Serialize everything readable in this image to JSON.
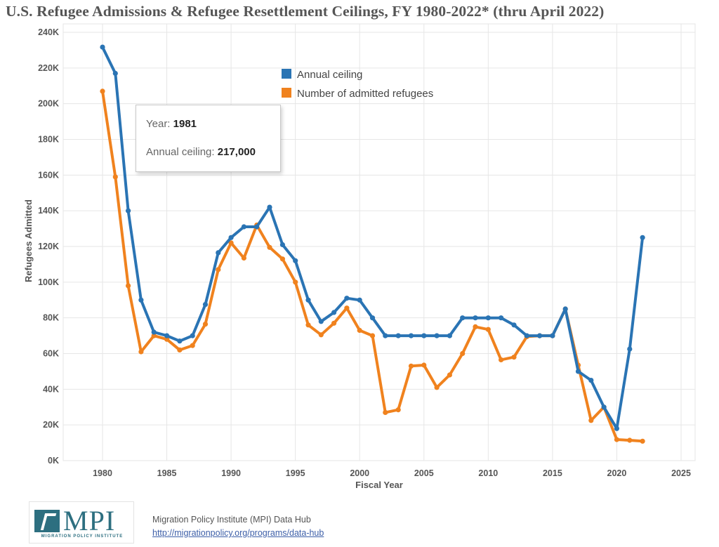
{
  "chart_data": {
    "type": "line",
    "title": "U.S. Refugee Admissions & Refugee Resettlement Ceilings, FY 1980-2022* (thru April 2022)",
    "xlabel": "Fiscal Year",
    "ylabel": "Refugees Admitted",
    "xlim": [
      1975,
      2025
    ],
    "ylim": [
      0,
      240000
    ],
    "x_ticks": [
      1980,
      1985,
      1990,
      1995,
      2000,
      2005,
      2010,
      2015,
      2020,
      2025
    ],
    "y_ticks": [
      {
        "value": 0,
        "label": "0K"
      },
      {
        "value": 20000,
        "label": "20K"
      },
      {
        "value": 40000,
        "label": "40K"
      },
      {
        "value": 60000,
        "label": "60K"
      },
      {
        "value": 80000,
        "label": "80K"
      },
      {
        "value": 100000,
        "label": "100K"
      },
      {
        "value": 120000,
        "label": "120K"
      },
      {
        "value": 140000,
        "label": "140K"
      },
      {
        "value": 160000,
        "label": "160K"
      },
      {
        "value": 180000,
        "label": "180K"
      },
      {
        "value": 200000,
        "label": "200K"
      },
      {
        "value": 220000,
        "label": "220K"
      },
      {
        "value": 240000,
        "label": "240K"
      }
    ],
    "grid": true,
    "legend_position": "top-center",
    "series": [
      {
        "name": "Annual ceiling",
        "color": "#2a74b4",
        "x": [
          1980,
          1981,
          1982,
          1983,
          1984,
          1985,
          1986,
          1987,
          1988,
          1989,
          1990,
          1991,
          1992,
          1993,
          1994,
          1995,
          1996,
          1997,
          1998,
          1999,
          2000,
          2001,
          2002,
          2003,
          2004,
          2005,
          2006,
          2007,
          2008,
          2009,
          2010,
          2011,
          2012,
          2013,
          2014,
          2015,
          2016,
          2017,
          2018,
          2019,
          2020,
          2021,
          2022
        ],
        "values": [
          231700,
          217000,
          140000,
          90000,
          72000,
          70000,
          67000,
          70000,
          87500,
          116500,
          125000,
          131000,
          131000,
          142000,
          121000,
          112000,
          90000,
          78000,
          83000,
          91000,
          90000,
          80000,
          70000,
          70000,
          70000,
          70000,
          70000,
          70000,
          80000,
          80000,
          80000,
          80000,
          76000,
          70000,
          70000,
          70000,
          85000,
          50000,
          45000,
          30000,
          18000,
          62500,
          125000
        ]
      },
      {
        "name": "Number of admitted refugees",
        "color": "#f0821e",
        "x": [
          1980,
          1981,
          1982,
          1983,
          1984,
          1985,
          1986,
          1987,
          1988,
          1989,
          1990,
          1991,
          1992,
          1993,
          1994,
          1995,
          1996,
          1997,
          1998,
          1999,
          2000,
          2001,
          2002,
          2003,
          2004,
          2005,
          2006,
          2007,
          2008,
          2009,
          2010,
          2011,
          2012,
          2013,
          2014,
          2015,
          2016,
          2017,
          2018,
          2019,
          2020,
          2021,
          2022
        ],
        "values": [
          207000,
          159000,
          98000,
          61000,
          70000,
          68000,
          62000,
          64500,
          76500,
          107000,
          122000,
          113500,
          132000,
          119500,
          113000,
          100000,
          76000,
          70500,
          77000,
          85500,
          73000,
          70000,
          27000,
          28500,
          53000,
          53500,
          41000,
          48000,
          60000,
          75000,
          73500,
          56500,
          58000,
          69500,
          70000,
          70000,
          85000,
          53500,
          22500,
          30000,
          11800,
          11400,
          10900
        ]
      }
    ],
    "tooltip": {
      "year_label": "Year:",
      "year_value": "1981",
      "ceiling_label": "Annual ceiling:",
      "ceiling_value": "217,000"
    }
  },
  "footer": {
    "logo_text": "MPI",
    "logo_subtext": "MIGRATION POLICY INSTITUTE",
    "source": "Migration Policy Institute (MPI) Data Hub",
    "url": "http://migrationpolicy.org/programs/data-hub"
  },
  "colors": {
    "ceiling": "#2a74b4",
    "admitted": "#f0821e",
    "grid": "#e6e6e6",
    "brand": "#2d6f80"
  }
}
